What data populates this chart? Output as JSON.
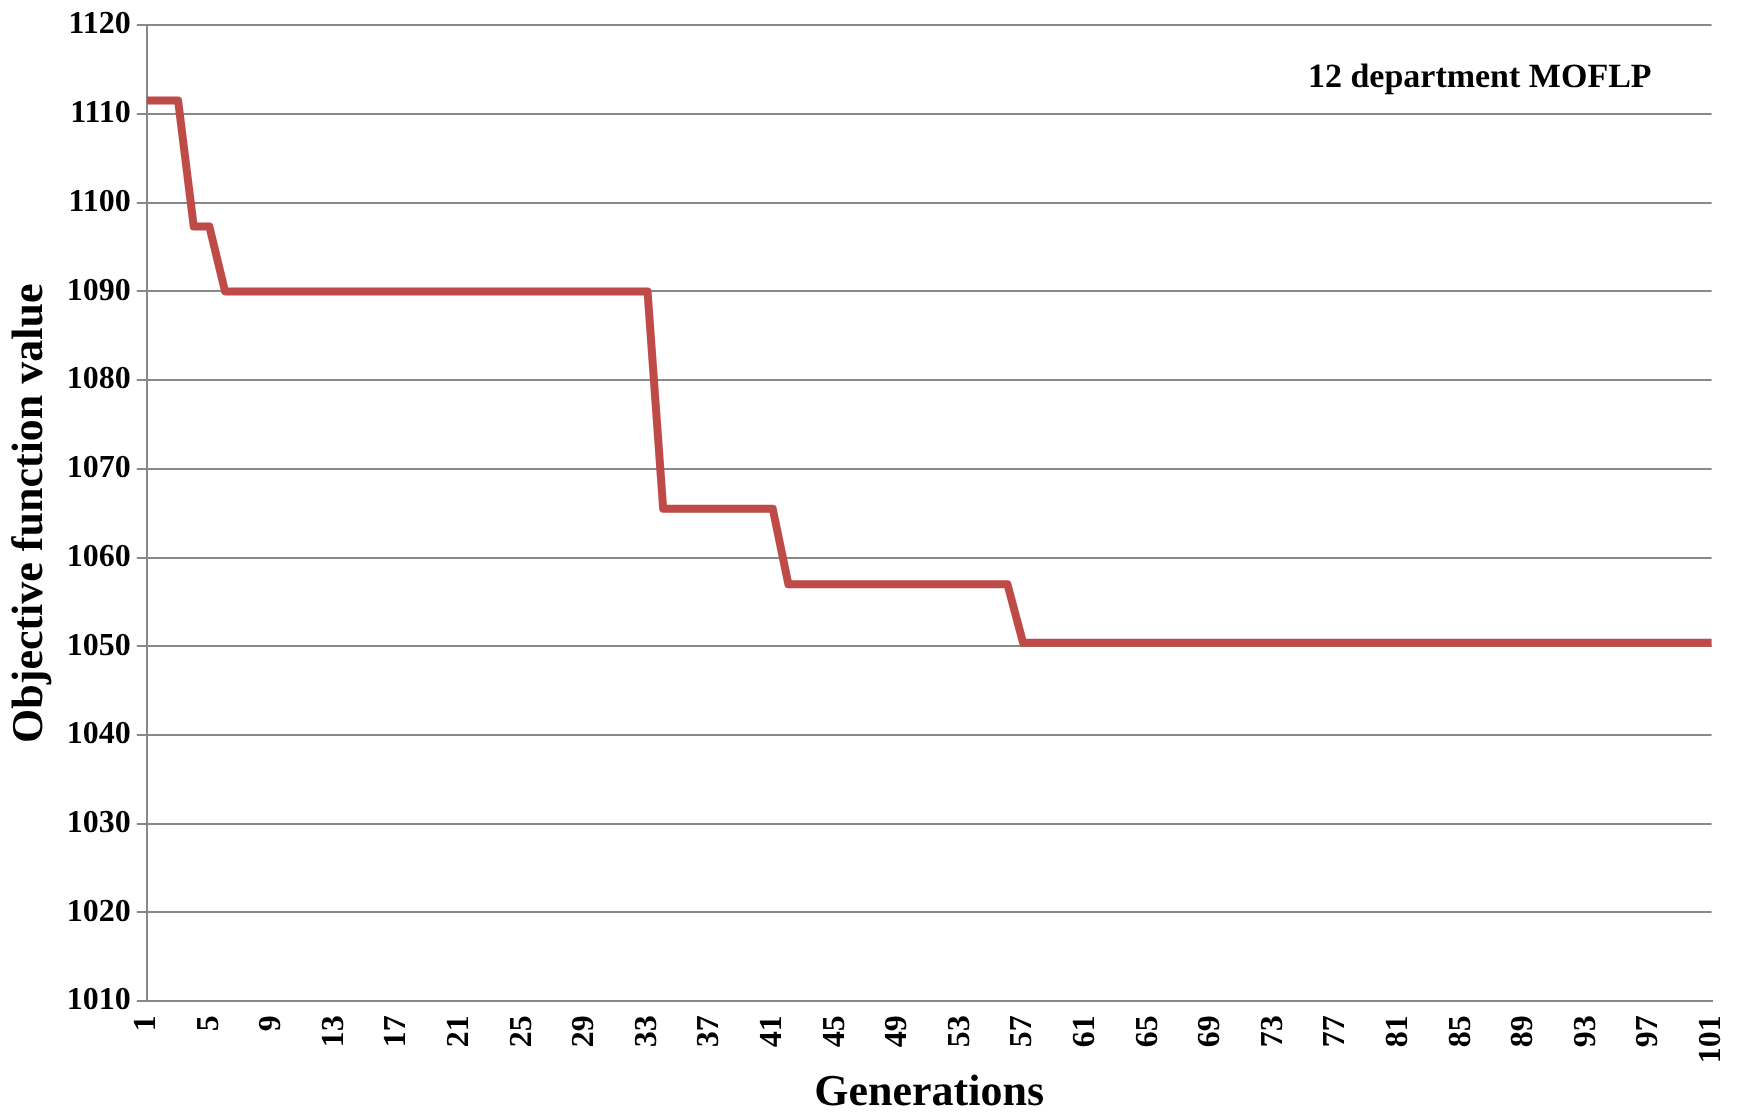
{
  "chart_data": {
    "type": "line",
    "ylabel": "Objective function value",
    "xlabel": "Generations",
    "annotations": [
      "12 department MOFLP"
    ],
    "categories": [
      "1",
      null,
      null,
      null,
      "5",
      null,
      null,
      null,
      "9",
      null,
      null,
      null,
      "13",
      null,
      null,
      null,
      "17",
      null,
      null,
      null,
      "21",
      null,
      null,
      null,
      "25",
      null,
      null,
      null,
      "29",
      null,
      null,
      null,
      "33",
      null,
      null,
      null,
      "37",
      null,
      null,
      null,
      "41",
      null,
      null,
      null,
      "45",
      null,
      null,
      null,
      "49",
      null,
      null,
      null,
      "53",
      null,
      null,
      null,
      "57",
      null,
      null,
      null,
      "61",
      null,
      null,
      null,
      "65",
      null,
      null,
      null,
      "69",
      null,
      null,
      null,
      "73",
      null,
      null,
      null,
      "77",
      null,
      null,
      null,
      "81",
      null,
      null,
      null,
      "85",
      null,
      null,
      null,
      "89",
      null,
      null,
      null,
      "93",
      null,
      null,
      null,
      "97",
      null,
      null,
      null,
      "101"
    ],
    "series": [
      {
        "color": "#be4b48",
        "values": [
          1111.5,
          1111.5,
          1111.5,
          1097.3,
          1097.3,
          1090,
          1090,
          1090,
          1090,
          1090,
          1090,
          1090,
          1090,
          1090,
          1090,
          1090,
          1090,
          1090,
          1090,
          1090,
          1090,
          1090,
          1090,
          1090,
          1090,
          1090,
          1090,
          1090,
          1090,
          1090,
          1090,
          1090,
          1090,
          1065.5,
          1065.5,
          1065.5,
          1065.5,
          1065.5,
          1065.5,
          1065.5,
          1065.5,
          1057,
          1057,
          1057,
          1057,
          1057,
          1057,
          1057,
          1057,
          1057,
          1057,
          1057,
          1057,
          1057,
          1057,
          1057,
          1050.4,
          1050.4,
          1050.4,
          1050.4,
          1050.4,
          1050.4,
          1050.4,
          1050.4,
          1050.4,
          1050.4,
          1050.4,
          1050.4,
          1050.4,
          1050.4,
          1050.4,
          1050.4,
          1050.4,
          1050.4,
          1050.4,
          1050.4,
          1050.4,
          1050.4,
          1050.4,
          1050.4,
          1050.4,
          1050.4,
          1050.4,
          1050.4,
          1050.4,
          1050.4,
          1050.4,
          1050.4,
          1050.4,
          1050.4,
          1050.4,
          1050.4,
          1050.4,
          1050.4,
          1050.4,
          1050.4,
          1050.4,
          1050.4,
          1050.4,
          1050.4,
          1050.4
        ]
      }
    ],
    "ylim": [
      1010,
      1120
    ],
    "yticks": [
      1010,
      1020,
      1030,
      1040,
      1050,
      1060,
      1070,
      1080,
      1090,
      1100,
      1110,
      1120
    ],
    "grid": "y",
    "legend": false,
    "marker": "none",
    "line_style": "solid"
  }
}
